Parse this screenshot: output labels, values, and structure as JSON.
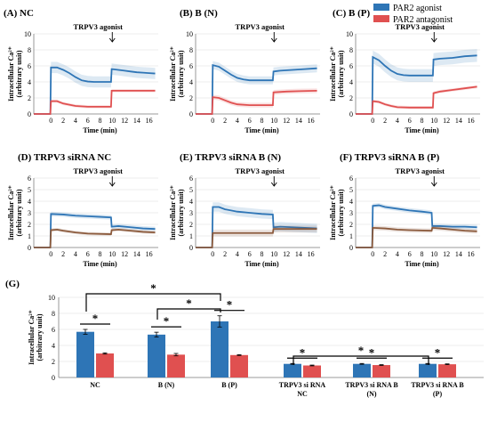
{
  "legend": [
    {
      "label": "PAR2 agonist",
      "color": "#2e75b6"
    },
    {
      "label": "PAR2 antagonist",
      "color": "#e05050"
    }
  ],
  "chart_data": [
    {
      "type": "line",
      "id": "A",
      "title": "(A) NC",
      "xlabel": "Time (min)",
      "ylabel": [
        "Intracellular Ca²⁺",
        "(arbitrary unit)"
      ],
      "xticks": [
        0,
        2,
        4,
        6,
        8,
        10,
        12,
        14,
        16
      ],
      "yticks": [
        0,
        2,
        4,
        6,
        8,
        10
      ],
      "xlim": [
        -2.8,
        17.5
      ],
      "ylim": [
        0,
        10
      ],
      "annotation": {
        "text": "TRPV3 agonist",
        "x": 10
      },
      "series": [
        {
          "color": "#2e75b6",
          "band": 0.7,
          "points": [
            [
              -2.8,
              0
            ],
            [
              -0.1,
              0
            ],
            [
              0,
              5.8
            ],
            [
              1,
              5.8
            ],
            [
              2,
              5.5
            ],
            [
              3,
              5.1
            ],
            [
              4,
              4.6
            ],
            [
              5,
              4.2
            ],
            [
              6,
              4.05
            ],
            [
              7,
              4.0
            ],
            [
              9.8,
              4.0
            ],
            [
              9.9,
              5.6
            ],
            [
              11,
              5.5
            ],
            [
              12,
              5.4
            ],
            [
              13,
              5.3
            ],
            [
              14,
              5.2
            ],
            [
              15,
              5.15
            ],
            [
              16,
              5.1
            ],
            [
              17,
              5.05
            ]
          ]
        },
        {
          "color": "#e05050",
          "band": 0.2,
          "points": [
            [
              -2.8,
              0
            ],
            [
              -0.1,
              0
            ],
            [
              0,
              1.6
            ],
            [
              1,
              1.6
            ],
            [
              2,
              1.3
            ],
            [
              4,
              1.0
            ],
            [
              6,
              0.9
            ],
            [
              9.8,
              0.9
            ],
            [
              9.9,
              2.9
            ],
            [
              11,
              2.9
            ],
            [
              14,
              2.9
            ],
            [
              17,
              2.9
            ]
          ]
        }
      ]
    },
    {
      "type": "line",
      "id": "B",
      "title": "(B) B (N)",
      "xlabel": "Time (min)",
      "ylabel": [
        "Intracellular Ca²⁺",
        "(arbitrary unit)"
      ],
      "xticks": [
        0,
        2,
        4,
        6,
        8,
        10,
        12,
        14,
        16
      ],
      "yticks": [
        0,
        2,
        4,
        6,
        8,
        10
      ],
      "xlim": [
        -2.8,
        17.5
      ],
      "ylim": [
        0,
        10
      ],
      "annotation": {
        "text": "TRPV3 agonist",
        "x": 10
      },
      "series": [
        {
          "color": "#2e75b6",
          "band": 0.5,
          "points": [
            [
              -2.8,
              0
            ],
            [
              -0.1,
              0
            ],
            [
              0,
              6.1
            ],
            [
              1,
              5.9
            ],
            [
              2,
              5.4
            ],
            [
              3,
              4.9
            ],
            [
              4,
              4.5
            ],
            [
              5,
              4.3
            ],
            [
              6,
              4.2
            ],
            [
              9.8,
              4.2
            ],
            [
              9.9,
              5.3
            ],
            [
              11,
              5.4
            ],
            [
              13,
              5.5
            ],
            [
              15,
              5.6
            ],
            [
              17,
              5.7
            ]
          ]
        },
        {
          "color": "#e05050",
          "band": 0.3,
          "points": [
            [
              -2.8,
              0
            ],
            [
              -0.1,
              0
            ],
            [
              0,
              2.1
            ],
            [
              1,
              2.0
            ],
            [
              2,
              1.7
            ],
            [
              3,
              1.4
            ],
            [
              4,
              1.2
            ],
            [
              6,
              1.1
            ],
            [
              9.8,
              1.1
            ],
            [
              9.9,
              2.7
            ],
            [
              12,
              2.8
            ],
            [
              14,
              2.85
            ],
            [
              17,
              2.9
            ]
          ]
        }
      ]
    },
    {
      "type": "line",
      "id": "C",
      "title": "(C) B (P)",
      "xlabel": "Time (min)",
      "ylabel": [
        "Intracellular Ca²⁺",
        "(arbitrary unit)"
      ],
      "xticks": [
        0,
        2,
        4,
        6,
        8,
        10,
        12,
        14,
        16
      ],
      "yticks": [
        0,
        2,
        4,
        6,
        8,
        10
      ],
      "xlim": [
        -2.8,
        17.5
      ],
      "ylim": [
        0,
        10
      ],
      "annotation": {
        "text": "TRPV3 agonist",
        "x": 10
      },
      "series": [
        {
          "color": "#2e75b6",
          "band": 0.8,
          "points": [
            [
              -2.8,
              0
            ],
            [
              -0.1,
              0
            ],
            [
              0,
              7.1
            ],
            [
              1,
              6.7
            ],
            [
              2,
              6.0
            ],
            [
              3,
              5.4
            ],
            [
              4,
              5.0
            ],
            [
              5,
              4.85
            ],
            [
              6,
              4.8
            ],
            [
              9.8,
              4.8
            ],
            [
              9.9,
              6.8
            ],
            [
              11,
              6.9
            ],
            [
              13,
              7.0
            ],
            [
              15,
              7.2
            ],
            [
              17,
              7.3
            ]
          ]
        },
        {
          "color": "#e05050",
          "band": 0.2,
          "points": [
            [
              -2.8,
              0
            ],
            [
              -0.1,
              0
            ],
            [
              0,
              1.6
            ],
            [
              1,
              1.5
            ],
            [
              2,
              1.2
            ],
            [
              3,
              1.0
            ],
            [
              4,
              0.85
            ],
            [
              6,
              0.8
            ],
            [
              9.8,
              0.8
            ],
            [
              9.9,
              2.6
            ],
            [
              11,
              2.8
            ],
            [
              13,
              3.0
            ],
            [
              15,
              3.2
            ],
            [
              17,
              3.4
            ]
          ]
        }
      ]
    },
    {
      "type": "line",
      "id": "D",
      "title": "(D) TRPV3 siRNA  NC",
      "xlabel": "Time (min)",
      "ylabel": [
        "Intracellular Ca²⁺",
        "(arbitrary unit)"
      ],
      "xticks": [
        0,
        2,
        4,
        6,
        8,
        10,
        12,
        14,
        16
      ],
      "yticks": [
        0,
        1,
        2,
        3,
        4,
        5,
        6
      ],
      "xlim": [
        -2.8,
        17.5
      ],
      "ylim": [
        0,
        6
      ],
      "annotation": {
        "text": "TRPV3 agonist",
        "x": 10
      },
      "series": [
        {
          "color": "#2e75b6",
          "band": 0.2,
          "points": [
            [
              -2.8,
              0
            ],
            [
              -0.1,
              0
            ],
            [
              0,
              2.9
            ],
            [
              2,
              2.85
            ],
            [
              4,
              2.75
            ],
            [
              6,
              2.7
            ],
            [
              8,
              2.65
            ],
            [
              9.8,
              2.6
            ],
            [
              9.9,
              1.8
            ],
            [
              11,
              1.85
            ],
            [
              13,
              1.75
            ],
            [
              15,
              1.65
            ],
            [
              17,
              1.6
            ]
          ]
        },
        {
          "color": "#8b5a3c",
          "band": 0.15,
          "points": [
            [
              -2.8,
              0
            ],
            [
              -0.1,
              0
            ],
            [
              0,
              1.5
            ],
            [
              1,
              1.55
            ],
            [
              2,
              1.45
            ],
            [
              4,
              1.3
            ],
            [
              6,
              1.2
            ],
            [
              9.8,
              1.15
            ],
            [
              9.9,
              1.5
            ],
            [
              11,
              1.55
            ],
            [
              13,
              1.45
            ],
            [
              15,
              1.35
            ],
            [
              17,
              1.3
            ]
          ]
        }
      ]
    },
    {
      "type": "line",
      "id": "E",
      "title": "(E) TRPV3 siRNA B (N)",
      "xlabel": "Time (min)",
      "ylabel": [
        "Intracellular Ca²⁺",
        "(arbitrary unit)"
      ],
      "xticks": [
        0,
        2,
        4,
        6,
        8,
        10,
        12,
        14,
        16
      ],
      "yticks": [
        0,
        1,
        2,
        3,
        4,
        5,
        6
      ],
      "xlim": [
        -2.8,
        17.5
      ],
      "ylim": [
        0,
        6
      ],
      "annotation": {
        "text": "TRPV3 agonist",
        "x": 10
      },
      "series": [
        {
          "color": "#2e75b6",
          "band": 0.4,
          "points": [
            [
              -2.8,
              0
            ],
            [
              -0.1,
              0
            ],
            [
              0,
              3.5
            ],
            [
              1,
              3.5
            ],
            [
              2,
              3.3
            ],
            [
              4,
              3.1
            ],
            [
              6,
              3.0
            ],
            [
              8,
              2.9
            ],
            [
              9.8,
              2.85
            ],
            [
              9.9,
              1.75
            ],
            [
              11,
              1.8
            ],
            [
              13,
              1.75
            ],
            [
              15,
              1.7
            ],
            [
              17,
              1.65
            ]
          ]
        },
        {
          "color": "#8b5a3c",
          "band": 0.3,
          "points": [
            [
              -2.8,
              0
            ],
            [
              -0.1,
              0
            ],
            [
              0,
              1.25
            ],
            [
              2,
              1.25
            ],
            [
              4,
              1.25
            ],
            [
              6,
              1.25
            ],
            [
              9.8,
              1.25
            ],
            [
              9.9,
              1.6
            ],
            [
              11,
              1.6
            ],
            [
              13,
              1.6
            ],
            [
              15,
              1.6
            ],
            [
              17,
              1.6
            ]
          ]
        }
      ]
    },
    {
      "type": "line",
      "id": "F",
      "title": "(F) TRPV3 siRNA B (P)",
      "xlabel": "Time (min)",
      "ylabel": [
        "Intracellular Ca²⁺",
        "(arbitrary unit)"
      ],
      "xticks": [
        0,
        2,
        4,
        6,
        8,
        10,
        12,
        14,
        16
      ],
      "yticks": [
        0,
        1,
        2,
        3,
        4,
        5,
        6
      ],
      "xlim": [
        -2.8,
        17.5
      ],
      "ylim": [
        0,
        6
      ],
      "annotation": {
        "text": "TRPV3 agonist",
        "x": 10
      },
      "series": [
        {
          "color": "#2e75b6",
          "band": 0.2,
          "points": [
            [
              -2.8,
              0
            ],
            [
              -0.1,
              0
            ],
            [
              0,
              3.6
            ],
            [
              1,
              3.65
            ],
            [
              2,
              3.5
            ],
            [
              4,
              3.35
            ],
            [
              6,
              3.2
            ],
            [
              8,
              3.1
            ],
            [
              9.6,
              3.0
            ],
            [
              9.7,
              1.85
            ],
            [
              11,
              1.85
            ],
            [
              13,
              1.8
            ],
            [
              15,
              1.8
            ],
            [
              17,
              1.75
            ]
          ]
        },
        {
          "color": "#8b5a3c",
          "band": 0.2,
          "points": [
            [
              -2.8,
              0
            ],
            [
              -0.1,
              0
            ],
            [
              0,
              1.7
            ],
            [
              2,
              1.65
            ],
            [
              4,
              1.55
            ],
            [
              6,
              1.5
            ],
            [
              9.6,
              1.45
            ],
            [
              9.7,
              1.7
            ],
            [
              11,
              1.65
            ],
            [
              13,
              1.55
            ],
            [
              15,
              1.45
            ],
            [
              17,
              1.4
            ]
          ]
        }
      ]
    },
    {
      "type": "bar",
      "id": "G",
      "title": "(G)",
      "ylabel": [
        "Intracellular Ca²⁺",
        "(arbitrary unit)"
      ],
      "yticks": [
        0,
        2,
        4,
        6,
        8,
        10
      ],
      "ylim": [
        0,
        10
      ],
      "categories": [
        [
          "NC"
        ],
        [
          "B (N)"
        ],
        [
          "B (P)"
        ],
        [
          "TRPV3 si RNA",
          "NC"
        ],
        [
          "TRPV3 si RNA B",
          "(N)"
        ],
        [
          "TRPV3 si RNA B",
          "(P)"
        ]
      ],
      "series": [
        {
          "name": "PAR2 agonist",
          "color": "#2e75b6",
          "values": [
            5.7,
            5.35,
            7.0,
            1.7,
            1.7,
            1.7
          ],
          "errors": [
            0.3,
            0.3,
            0.7,
            0.05,
            0.05,
            0.05
          ]
        },
        {
          "name": "PAR2 antagonist",
          "color": "#e05050",
          "values": [
            3.0,
            2.85,
            2.8,
            1.5,
            1.55,
            1.65
          ],
          "errors": [
            0.08,
            0.15,
            0.05,
            0.05,
            0.05,
            0.05
          ]
        }
      ],
      "star": "*"
    }
  ]
}
